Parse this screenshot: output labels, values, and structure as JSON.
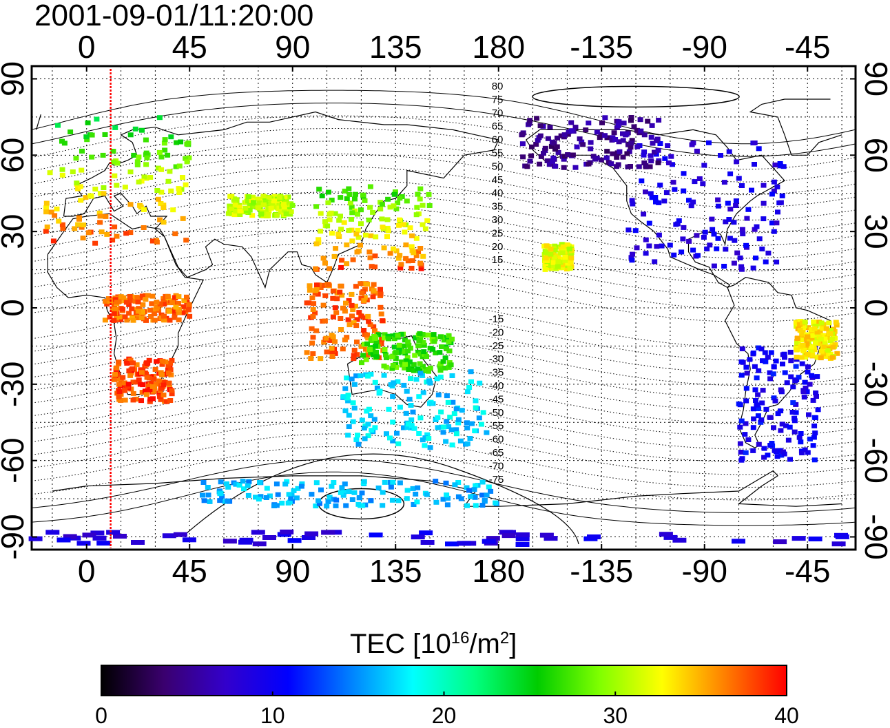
{
  "map": {
    "title": "2001-09-01/11:20:00",
    "longitude_ticks": [
      "0",
      "45",
      "90",
      "135",
      "180",
      "-135",
      "-90",
      "-45"
    ],
    "latitude_ticks": [
      "90",
      "60",
      "30",
      "0",
      "-30",
      "-60",
      "-90"
    ],
    "longitude_tick_values": [
      0,
      45,
      90,
      135,
      180,
      -135,
      -90,
      -45
    ],
    "latitude_tick_values": [
      90,
      60,
      30,
      0,
      -30,
      -60,
      -90
    ],
    "map_lon_range": [
      -24,
      336
    ],
    "map_lat_range": [
      -95,
      95
    ],
    "terminator_longitude": 10.5,
    "terminator_color": "#ff0000",
    "magnetic_contour_labels_north": [
      "80",
      "75",
      "70",
      "65",
      "60",
      "55",
      "50",
      "45",
      "40",
      "35",
      "30",
      "25",
      "20",
      "15"
    ],
    "magnetic_contour_labels_south": [
      "-15",
      "-20",
      "-25",
      "-30",
      "-35",
      "-40",
      "-45",
      "-50",
      "-55",
      "-60",
      "-65",
      "-70",
      "-75"
    ]
  },
  "colorbar": {
    "title_prefix": "TEC  [10",
    "title_sup1": "16",
    "title_mid": "/m",
    "title_sup2": "2",
    "title_suffix": "]",
    "ticks": [
      "0",
      "10",
      "20",
      "30",
      "40"
    ],
    "range": [
      0,
      40
    ],
    "colors": [
      "#000000",
      "#3a006e",
      "#3300cc",
      "#0000ff",
      "#0080ff",
      "#00ffff",
      "#00ff80",
      "#00cc00",
      "#80ff00",
      "#ffff00",
      "#ff8000",
      "#ff0000"
    ]
  },
  "tec_regions": [
    {
      "name": "europe",
      "lon": [
        -18,
        45
      ],
      "lat": [
        25,
        75
      ],
      "tec_high": 38,
      "tec_low": 24
    },
    {
      "name": "japan-china",
      "lon": [
        100,
        150
      ],
      "lat": [
        15,
        48
      ],
      "tec_high": 38,
      "tec_low": 26
    },
    {
      "name": "africa-south",
      "lon": [
        12,
        38
      ],
      "lat": [
        -37,
        -20
      ],
      "tec": 38
    },
    {
      "name": "africa-central",
      "lon": [
        8,
        45
      ],
      "lat": [
        -5,
        5
      ],
      "tec": 37
    },
    {
      "name": "asia-central",
      "lon": [
        62,
        90
      ],
      "lat": [
        36,
        44
      ],
      "tec": 31
    },
    {
      "name": "se-asia",
      "lon": [
        96,
        130
      ],
      "lat": [
        -20,
        10
      ],
      "tec": 37
    },
    {
      "name": "indonesia",
      "lon": [
        120,
        160
      ],
      "lat": [
        -25,
        -10
      ],
      "tec": 27
    },
    {
      "name": "australia",
      "lon": [
        112,
        175
      ],
      "lat": [
        -55,
        -25
      ],
      "tec": 17
    },
    {
      "name": "north-america",
      "lon": [
        235,
        305
      ],
      "lat": [
        15,
        65
      ],
      "tec": 9
    },
    {
      "name": "canada-arctic",
      "lon": [
        190,
        250
      ],
      "lat": [
        55,
        75
      ],
      "tec": 5
    },
    {
      "name": "south-america",
      "lon": [
        285,
        320
      ],
      "lat": [
        -60,
        -15
      ],
      "tec": 10
    },
    {
      "name": "brazil-east",
      "lon": [
        310,
        328
      ],
      "lat": [
        -20,
        -5
      ],
      "tec": 33
    },
    {
      "name": "hawaii",
      "lon": [
        200,
        212
      ],
      "lat": [
        15,
        25
      ],
      "tec": 32
    },
    {
      "name": "antarctic-band",
      "lon": [
        -24,
        336
      ],
      "lat": [
        -93,
        -88
      ],
      "tec": 9
    },
    {
      "name": "antarctic-coast",
      "lon": [
        50,
        180
      ],
      "lat": [
        -78,
        -68
      ],
      "tec": 16
    }
  ]
}
